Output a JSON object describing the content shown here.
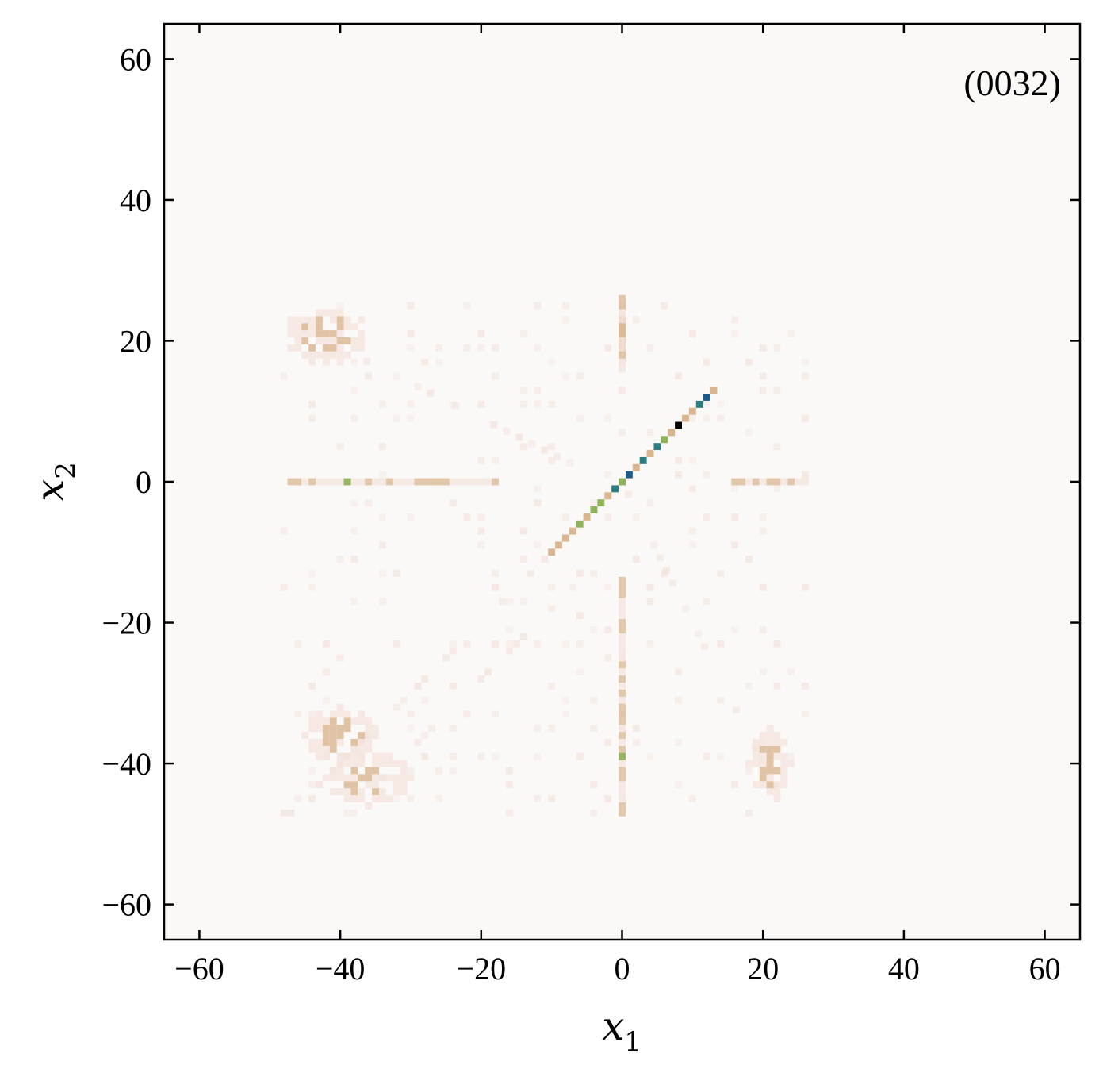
{
  "chart_data": {
    "type": "heatmap",
    "panel_label": "(0032)",
    "xlabel": "x",
    "xlabel_sub": "1",
    "ylabel": "x",
    "ylabel_sub": "2",
    "xlim": [
      -65,
      65
    ],
    "ylim": [
      -65,
      65
    ],
    "xticks": [
      -60,
      -40,
      -20,
      0,
      20,
      40,
      60
    ],
    "yticks": [
      -60,
      -40,
      -20,
      0,
      20,
      40,
      60
    ],
    "xtick_labels": [
      "−60",
      "−40",
      "−20",
      "0",
      "20",
      "40",
      "60"
    ],
    "ytick_labels": [
      "−60",
      "−40",
      "−20",
      "0",
      "20",
      "40",
      "60"
    ],
    "colors": {
      "background": "#fbf9f8",
      "low": "#f3e3dc",
      "mid": "#d9b590",
      "green": "#8fb35a",
      "teal": "#2a7d80",
      "blue": "#1d5a8a",
      "max": "#000000"
    },
    "features": {
      "diagonal_cells": [
        {
          "x": -10,
          "y": -10,
          "c": "mid"
        },
        {
          "x": -9,
          "y": -9,
          "c": "mid"
        },
        {
          "x": -8,
          "y": -8,
          "c": "mid"
        },
        {
          "x": -7,
          "y": -7,
          "c": "mid"
        },
        {
          "x": -6,
          "y": -6,
          "c": "green"
        },
        {
          "x": -5,
          "y": -5,
          "c": "mid"
        },
        {
          "x": -4,
          "y": -4,
          "c": "green"
        },
        {
          "x": -3,
          "y": -3,
          "c": "green"
        },
        {
          "x": -2,
          "y": -2,
          "c": "mid"
        },
        {
          "x": -1,
          "y": -1,
          "c": "teal"
        },
        {
          "x": 0,
          "y": 0,
          "c": "green"
        },
        {
          "x": 1,
          "y": 1,
          "c": "blue"
        },
        {
          "x": 2,
          "y": 2,
          "c": "mid"
        },
        {
          "x": 3,
          "y": 3,
          "c": "teal"
        },
        {
          "x": 4,
          "y": 4,
          "c": "mid"
        },
        {
          "x": 5,
          "y": 5,
          "c": "teal"
        },
        {
          "x": 6,
          "y": 6,
          "c": "green"
        },
        {
          "x": 7,
          "y": 7,
          "c": "mid"
        },
        {
          "x": 8,
          "y": 8,
          "c": "max"
        },
        {
          "x": 9,
          "y": 9,
          "c": "mid"
        },
        {
          "x": 10,
          "y": 10,
          "c": "mid"
        },
        {
          "x": 11,
          "y": 11,
          "c": "teal"
        },
        {
          "x": 12,
          "y": 12,
          "c": "blue"
        },
        {
          "x": 13,
          "y": 13,
          "c": "mid"
        }
      ],
      "horizontal_band": {
        "y": 0,
        "x_ranges": [
          [
            -47,
            -18
          ],
          [
            16,
            26
          ]
        ]
      },
      "vertical_band": {
        "x": 0,
        "y_ranges": [
          [
            -47,
            -14
          ],
          [
            16,
            26
          ]
        ]
      },
      "blobs": [
        {
          "x": -42,
          "y": 21,
          "rx": 6,
          "ry": 4,
          "level": "mid"
        },
        {
          "x": -40,
          "y": -36,
          "rx": 5,
          "ry": 4,
          "level": "mid"
        },
        {
          "x": -36,
          "y": -42,
          "rx": 6,
          "ry": 4,
          "level": "mid"
        },
        {
          "x": 21,
          "y": -40,
          "rx": 3,
          "ry": 5,
          "level": "mid"
        },
        {
          "x": 0,
          "y": 21,
          "rx": 1,
          "ry": 4,
          "level": "mid"
        }
      ]
    }
  }
}
